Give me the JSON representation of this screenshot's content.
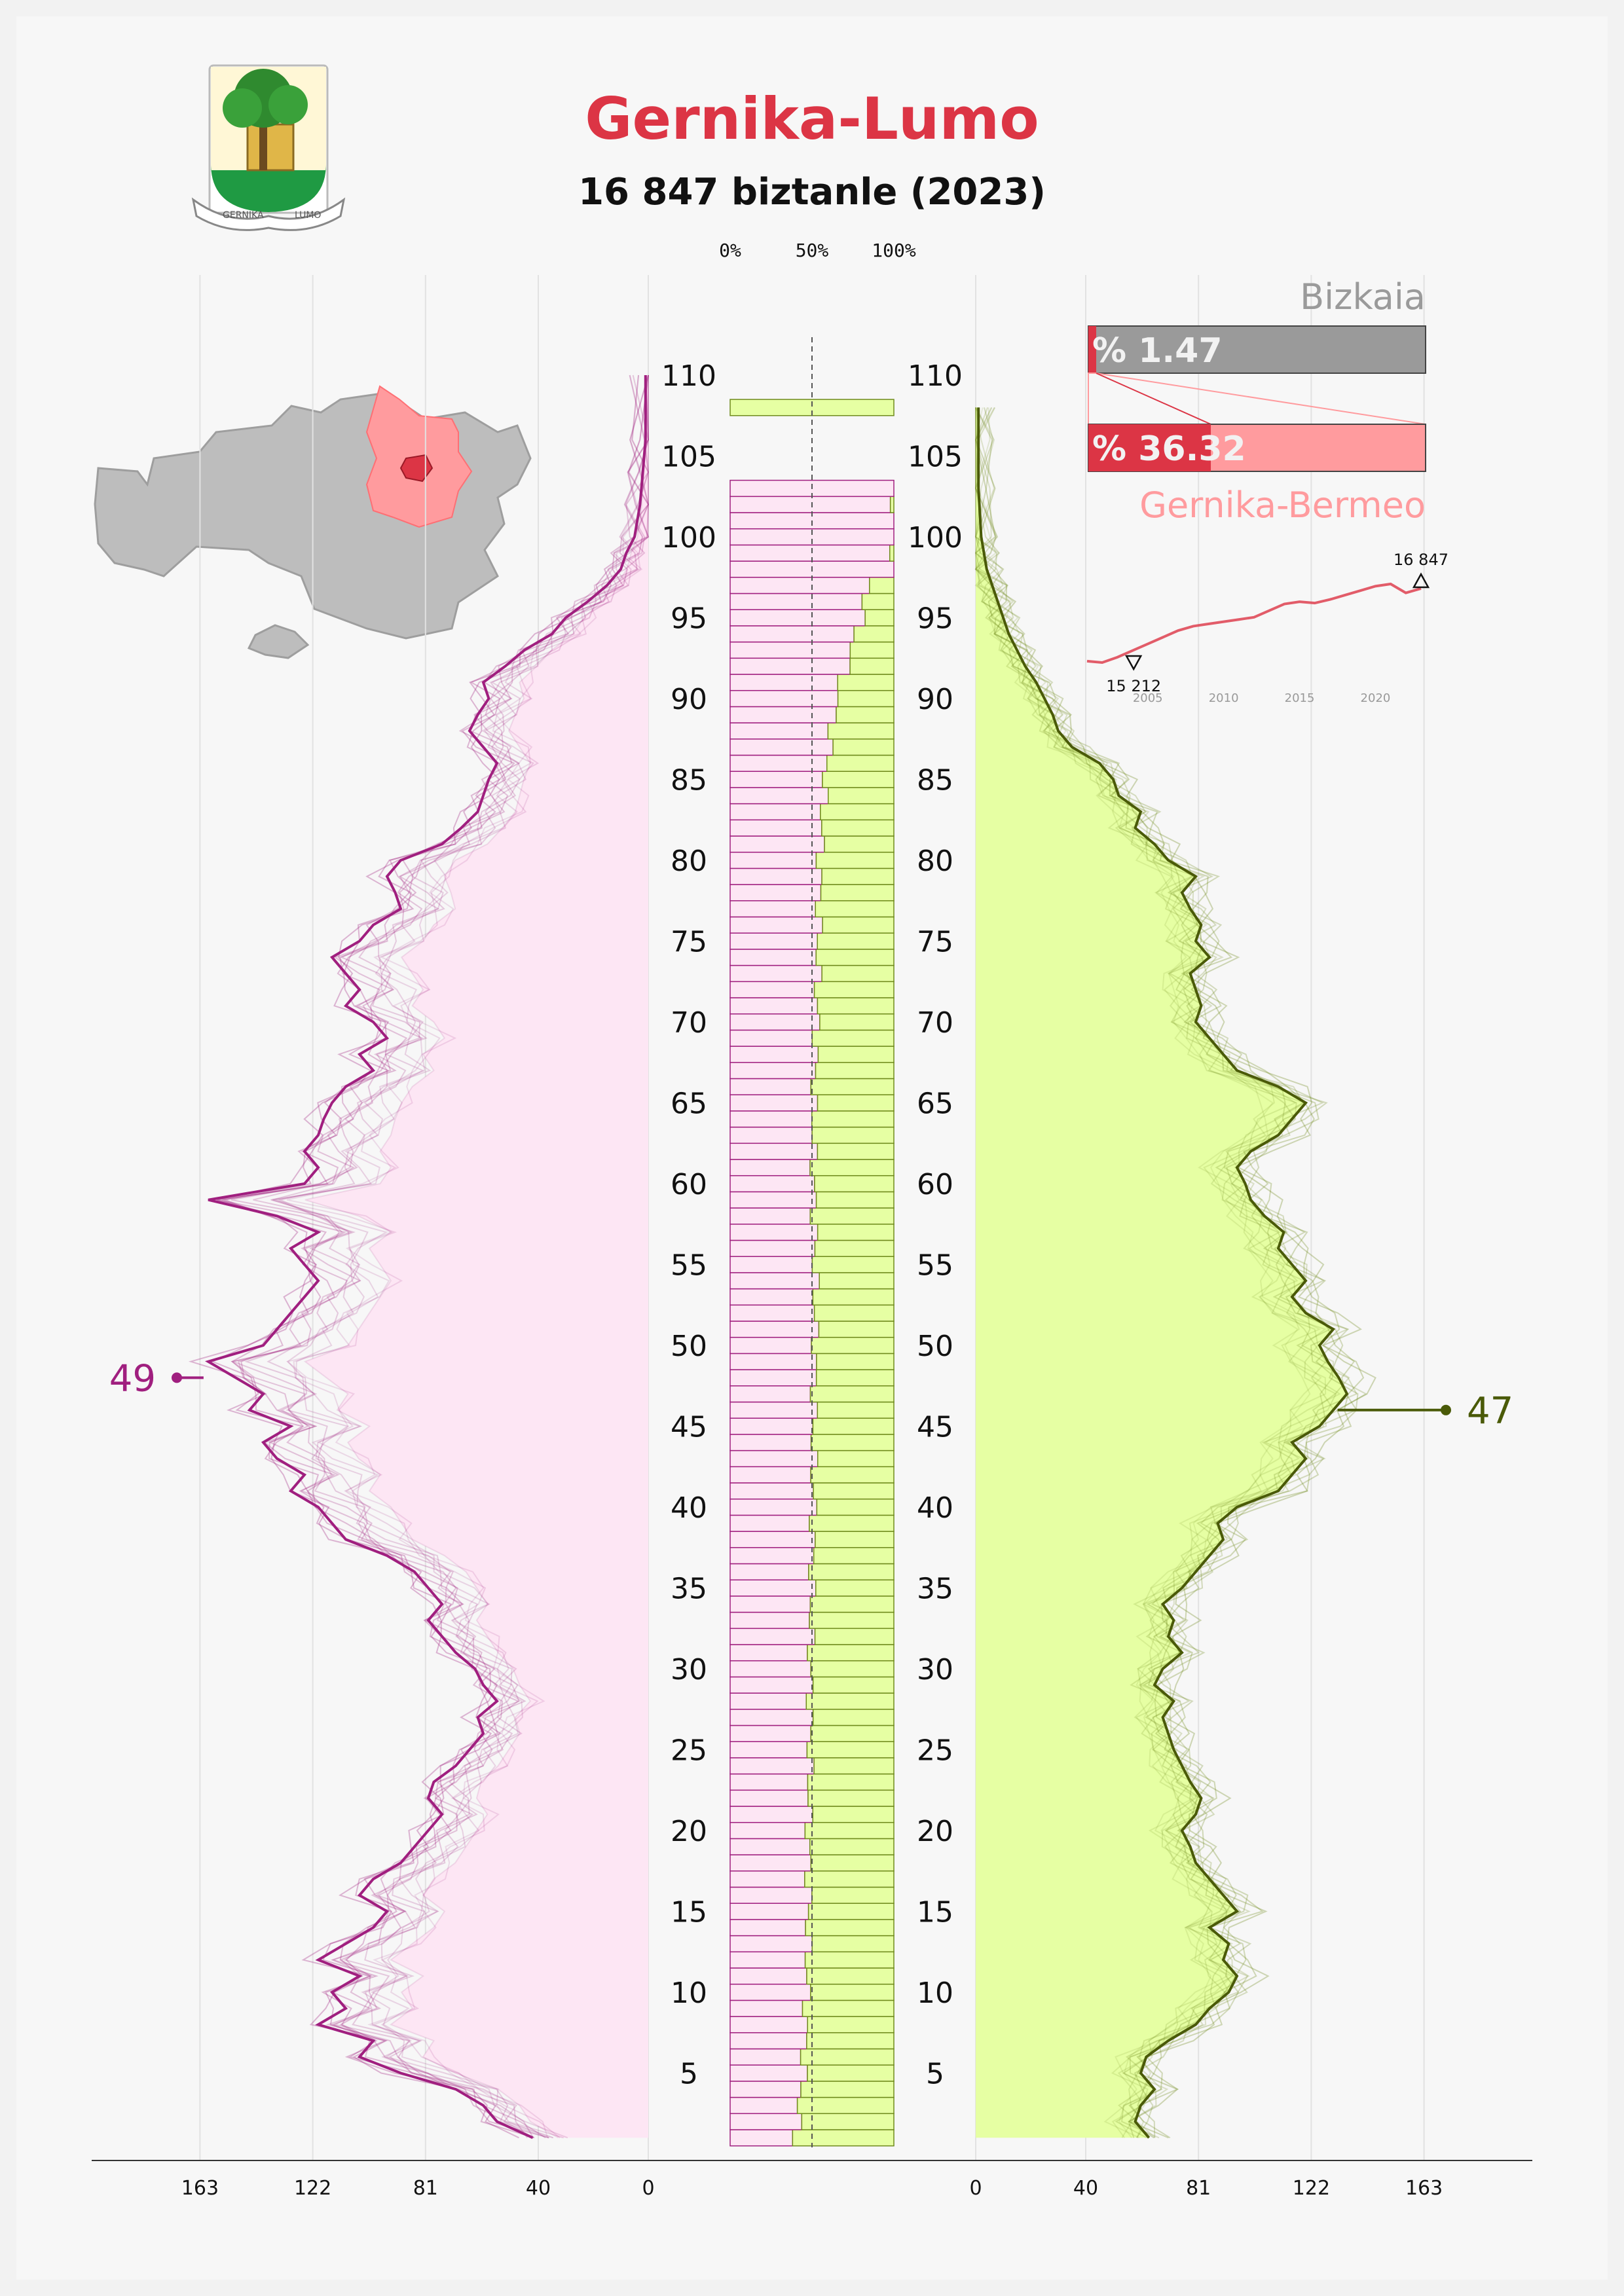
{
  "header": {
    "title": "Gernika-Lumo",
    "subtitle": "16 847 biztanle (2023)",
    "title_color": "#dc3545",
    "crest_text": [
      "GERNIKA",
      "LUMO"
    ]
  },
  "colors": {
    "male": "#a01f7f",
    "male_fill": "#fde6f4",
    "female": "#4a5a08",
    "female_fill": "#e6ffa3",
    "female_line": "#6f8a1c",
    "province": "#9a9a9a",
    "comarca": "#ff9b9e",
    "town": "#dc3545"
  },
  "chart_data": {
    "type": "population_pyramid",
    "year": 2023,
    "age_ticks": [
      5,
      10,
      15,
      20,
      25,
      30,
      35,
      40,
      45,
      50,
      55,
      60,
      65,
      70,
      75,
      80,
      85,
      90,
      95,
      100,
      105,
      110
    ],
    "count_ticks": [
      0,
      40,
      81,
      122,
      163
    ],
    "share_ticks": [
      "0%",
      "50%",
      "100%"
    ],
    "callout_male": {
      "value": 49,
      "age": 48
    },
    "callout_female": {
      "value": 47,
      "age": 46
    },
    "male_2023": [
      [
        1,
        42
      ],
      [
        2,
        55
      ],
      [
        3,
        60
      ],
      [
        4,
        70
      ],
      [
        5,
        90
      ],
      [
        6,
        105
      ],
      [
        7,
        100
      ],
      [
        8,
        120
      ],
      [
        9,
        110
      ],
      [
        10,
        115
      ],
      [
        11,
        105
      ],
      [
        12,
        120
      ],
      [
        13,
        110
      ],
      [
        14,
        100
      ],
      [
        15,
        95
      ],
      [
        16,
        105
      ],
      [
        17,
        100
      ],
      [
        18,
        90
      ],
      [
        19,
        85
      ],
      [
        20,
        80
      ],
      [
        21,
        75
      ],
      [
        22,
        80
      ],
      [
        23,
        78
      ],
      [
        24,
        70
      ],
      [
        25,
        65
      ],
      [
        26,
        60
      ],
      [
        27,
        62
      ],
      [
        28,
        55
      ],
      [
        29,
        60
      ],
      [
        30,
        63
      ],
      [
        31,
        70
      ],
      [
        32,
        75
      ],
      [
        33,
        80
      ],
      [
        34,
        75
      ],
      [
        35,
        80
      ],
      [
        36,
        85
      ],
      [
        37,
        95
      ],
      [
        38,
        110
      ],
      [
        39,
        115
      ],
      [
        40,
        120
      ],
      [
        41,
        130
      ],
      [
        42,
        125
      ],
      [
        43,
        135
      ],
      [
        44,
        140
      ],
      [
        45,
        130
      ],
      [
        46,
        145
      ],
      [
        47,
        140
      ],
      [
        48,
        150
      ],
      [
        49,
        160
      ],
      [
        50,
        140
      ],
      [
        51,
        135
      ],
      [
        52,
        130
      ],
      [
        53,
        125
      ],
      [
        54,
        120
      ],
      [
        55,
        125
      ],
      [
        56,
        130
      ],
      [
        57,
        120
      ],
      [
        58,
        135
      ],
      [
        59,
        160
      ],
      [
        60,
        125
      ],
      [
        61,
        120
      ],
      [
        62,
        125
      ],
      [
        63,
        120
      ],
      [
        64,
        118
      ],
      [
        65,
        115
      ],
      [
        66,
        110
      ],
      [
        67,
        100
      ],
      [
        68,
        105
      ],
      [
        69,
        95
      ],
      [
        70,
        100
      ],
      [
        71,
        110
      ],
      [
        72,
        105
      ],
      [
        73,
        110
      ],
      [
        74,
        115
      ],
      [
        75,
        105
      ],
      [
        76,
        100
      ],
      [
        77,
        90
      ],
      [
        78,
        92
      ],
      [
        79,
        95
      ],
      [
        80,
        90
      ],
      [
        81,
        75
      ],
      [
        82,
        68
      ],
      [
        83,
        62
      ],
      [
        84,
        60
      ],
      [
        85,
        58
      ],
      [
        86,
        55
      ],
      [
        87,
        60
      ],
      [
        88,
        65
      ],
      [
        89,
        62
      ],
      [
        90,
        58
      ],
      [
        91,
        60
      ],
      [
        92,
        52
      ],
      [
        93,
        45
      ],
      [
        94,
        35
      ],
      [
        95,
        30
      ],
      [
        96,
        22
      ],
      [
        97,
        15
      ],
      [
        98,
        10
      ],
      [
        99,
        8
      ],
      [
        100,
        5
      ],
      [
        102,
        3
      ],
      [
        104,
        2
      ],
      [
        106,
        1
      ],
      [
        110,
        1
      ]
    ],
    "female_2023": [
      [
        1,
        63
      ],
      [
        2,
        58
      ],
      [
        3,
        60
      ],
      [
        4,
        65
      ],
      [
        5,
        60
      ],
      [
        6,
        62
      ],
      [
        7,
        70
      ],
      [
        8,
        80
      ],
      [
        9,
        85
      ],
      [
        10,
        92
      ],
      [
        11,
        95
      ],
      [
        12,
        90
      ],
      [
        13,
        92
      ],
      [
        14,
        85
      ],
      [
        15,
        95
      ],
      [
        16,
        90
      ],
      [
        17,
        85
      ],
      [
        18,
        80
      ],
      [
        19,
        78
      ],
      [
        20,
        75
      ],
      [
        21,
        80
      ],
      [
        22,
        82
      ],
      [
        23,
        78
      ],
      [
        24,
        75
      ],
      [
        25,
        72
      ],
      [
        26,
        70
      ],
      [
        27,
        68
      ],
      [
        28,
        72
      ],
      [
        29,
        65
      ],
      [
        30,
        68
      ],
      [
        31,
        75
      ],
      [
        32,
        70
      ],
      [
        33,
        72
      ],
      [
        34,
        68
      ],
      [
        35,
        75
      ],
      [
        36,
        80
      ],
      [
        37,
        85
      ],
      [
        38,
        90
      ],
      [
        39,
        88
      ],
      [
        40,
        95
      ],
      [
        41,
        110
      ],
      [
        42,
        115
      ],
      [
        43,
        120
      ],
      [
        44,
        115
      ],
      [
        45,
        125
      ],
      [
        46,
        130
      ],
      [
        47,
        135
      ],
      [
        48,
        132
      ],
      [
        49,
        128
      ],
      [
        50,
        125
      ],
      [
        51,
        130
      ],
      [
        52,
        120
      ],
      [
        53,
        115
      ],
      [
        54,
        120
      ],
      [
        55,
        115
      ],
      [
        56,
        110
      ],
      [
        57,
        112
      ],
      [
        58,
        105
      ],
      [
        59,
        100
      ],
      [
        60,
        98
      ],
      [
        61,
        95
      ],
      [
        62,
        100
      ],
      [
        63,
        110
      ],
      [
        64,
        115
      ],
      [
        65,
        120
      ],
      [
        66,
        110
      ],
      [
        67,
        95
      ],
      [
        68,
        90
      ],
      [
        69,
        85
      ],
      [
        70,
        80
      ],
      [
        71,
        82
      ],
      [
        72,
        80
      ],
      [
        73,
        78
      ],
      [
        74,
        85
      ],
      [
        75,
        80
      ],
      [
        76,
        82
      ],
      [
        77,
        78
      ],
      [
        78,
        75
      ],
      [
        79,
        80
      ],
      [
        80,
        70
      ],
      [
        81,
        65
      ],
      [
        82,
        58
      ],
      [
        83,
        60
      ],
      [
        84,
        52
      ],
      [
        85,
        50
      ],
      [
        86,
        45
      ],
      [
        87,
        35
      ],
      [
        88,
        30
      ],
      [
        89,
        28
      ],
      [
        90,
        25
      ],
      [
        91,
        22
      ],
      [
        92,
        18
      ],
      [
        93,
        15
      ],
      [
        94,
        12
      ],
      [
        95,
        10
      ],
      [
        96,
        8
      ],
      [
        97,
        6
      ],
      [
        98,
        4
      ],
      [
        99,
        3
      ],
      [
        100,
        2
      ],
      [
        103,
        1
      ],
      [
        106,
        1
      ],
      [
        108,
        1
      ]
    ],
    "share_band": {
      "bottom_age": 1,
      "top_age": 103,
      "outlier_age": 108
    },
    "share_female_pct": [
      [
        1,
        60
      ],
      [
        5,
        55
      ],
      [
        10,
        53
      ],
      [
        15,
        52
      ],
      [
        20,
        52
      ],
      [
        25,
        51
      ],
      [
        30,
        51
      ],
      [
        35,
        50
      ],
      [
        40,
        49
      ],
      [
        45,
        49
      ],
      [
        50,
        48
      ],
      [
        55,
        48
      ],
      [
        60,
        49
      ],
      [
        65,
        49
      ],
      [
        70,
        47
      ],
      [
        75,
        46
      ],
      [
        80,
        45
      ],
      [
        85,
        42
      ],
      [
        90,
        35
      ],
      [
        95,
        20
      ],
      [
        97,
        15
      ],
      [
        98,
        0
      ],
      [
        103,
        0
      ]
    ],
    "shares": {
      "top_label": "Bizkaia",
      "top_value": "% 1.47",
      "top_fraction": 0.0147,
      "bottom_label": "Gernika-Bermeo",
      "bottom_value": "% 36.32",
      "bottom_fraction": 0.3632
    },
    "trend": {
      "start_label": "15 212",
      "end_label": "16 847",
      "x_ticks": [
        "2005",
        "2010",
        "2015",
        "2020"
      ],
      "points": [
        [
          2001,
          15212
        ],
        [
          2002,
          15180
        ],
        [
          2003,
          15300
        ],
        [
          2004,
          15450
        ],
        [
          2005,
          15600
        ],
        [
          2006,
          15750
        ],
        [
          2007,
          15900
        ],
        [
          2008,
          16000
        ],
        [
          2009,
          16050
        ],
        [
          2010,
          16100
        ],
        [
          2011,
          16150
        ],
        [
          2012,
          16200
        ],
        [
          2013,
          16350
        ],
        [
          2014,
          16500
        ],
        [
          2015,
          16550
        ],
        [
          2016,
          16520
        ],
        [
          2017,
          16600
        ],
        [
          2018,
          16700
        ],
        [
          2019,
          16800
        ],
        [
          2020,
          16900
        ],
        [
          2021,
          16950
        ],
        [
          2022,
          16750
        ],
        [
          2023,
          16847
        ]
      ]
    }
  }
}
